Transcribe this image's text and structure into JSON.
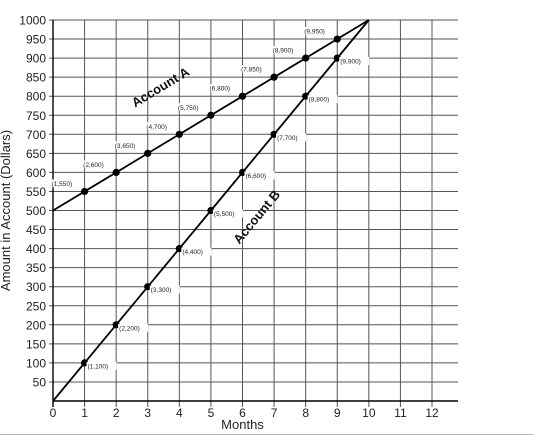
{
  "chart_data": {
    "type": "line",
    "title": "",
    "xlabel": "Months",
    "ylabel": "Amount in Account (Dollars)",
    "xlim": [
      0,
      12
    ],
    "ylim": [
      0,
      1000
    ],
    "x_ticks": [
      "0",
      "1",
      "2",
      "3",
      "4",
      "5",
      "6",
      "7",
      "8",
      "9",
      "10",
      "11",
      "12"
    ],
    "y_ticks": [
      "50",
      "100",
      "150",
      "200",
      "250",
      "300",
      "350",
      "400",
      "450",
      "500",
      "550",
      "600",
      "650",
      "700",
      "750",
      "800",
      "850",
      "900",
      "950",
      "1000"
    ],
    "grid": true,
    "series": [
      {
        "name": "Account A",
        "line": {
          "x": [
            0,
            10
          ],
          "y": [
            500,
            1000
          ]
        },
        "points": [
          {
            "x": 1,
            "y": 550,
            "label": "(1,550)"
          },
          {
            "x": 2,
            "y": 600,
            "label": "(2,600)"
          },
          {
            "x": 3,
            "y": 650,
            "label": "(3,650)"
          },
          {
            "x": 4,
            "y": 700,
            "label": "(4,700)"
          },
          {
            "x": 5,
            "y": 750,
            "label": "(5,750)"
          },
          {
            "x": 6,
            "y": 800,
            "label": "(6,800)"
          },
          {
            "x": 7,
            "y": 850,
            "label": "(7,850)"
          },
          {
            "x": 8,
            "y": 900,
            "label": "(8,900)"
          },
          {
            "x": 9,
            "y": 950,
            "label": "(9,950)"
          }
        ]
      },
      {
        "name": "Account B",
        "line": {
          "x": [
            0,
            10
          ],
          "y": [
            0,
            1000
          ]
        },
        "points": [
          {
            "x": 1,
            "y": 100,
            "label": "(1,100)"
          },
          {
            "x": 2,
            "y": 200,
            "label": "(2,200)"
          },
          {
            "x": 3,
            "y": 300,
            "label": "(3,300)"
          },
          {
            "x": 4,
            "y": 400,
            "label": "(4,400)"
          },
          {
            "x": 5,
            "y": 500,
            "label": "(5,500)"
          },
          {
            "x": 6,
            "y": 600,
            "label": "(6,600)"
          },
          {
            "x": 7,
            "y": 700,
            "label": "(7,700)"
          },
          {
            "x": 8,
            "y": 800,
            "label": "(8,800)"
          },
          {
            "x": 9,
            "y": 900,
            "label": "(9,900)"
          }
        ]
      }
    ],
    "colors": {
      "line": "#000000",
      "grid": "#555555",
      "background": "#ffffff"
    }
  }
}
